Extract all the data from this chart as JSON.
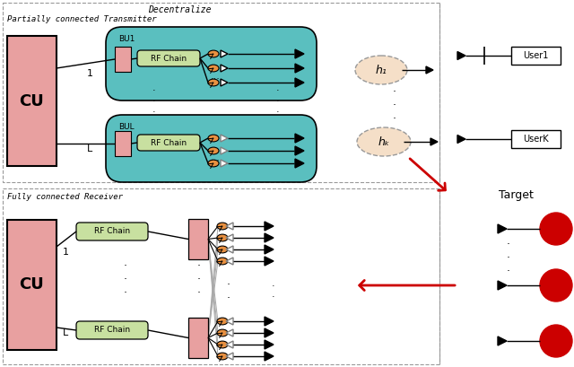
{
  "bg_color": "#ffffff",
  "cu_color": "#e8a0a0",
  "bu_color": "#5abfbf",
  "rfchain_color": "#c8e0a0",
  "bb_color": "#e8a0a0",
  "phase_color": "#e89040",
  "phase_edge": "#000000",
  "red_color": "#cc0000",
  "target_color": "#cc0000",
  "dashed_color": "#999999",
  "channel_color": "#f5dfc8",
  "channel_edge": "#999999",
  "gray": "#aaaaaa",
  "labels": {
    "CU": "CU",
    "BU1": "BU1",
    "BUL": "BUL",
    "rfchain": "RF Chain",
    "user1": "User1",
    "userK": "UserK",
    "h1": "h₁",
    "hK": "hₖ",
    "target": "Target",
    "link1": "1",
    "linkL": "L",
    "decentralize": "Decentralize",
    "subtitle_tx": "Partially connected Transmitter",
    "subtitle_rx": "Fully connected Receiver"
  }
}
